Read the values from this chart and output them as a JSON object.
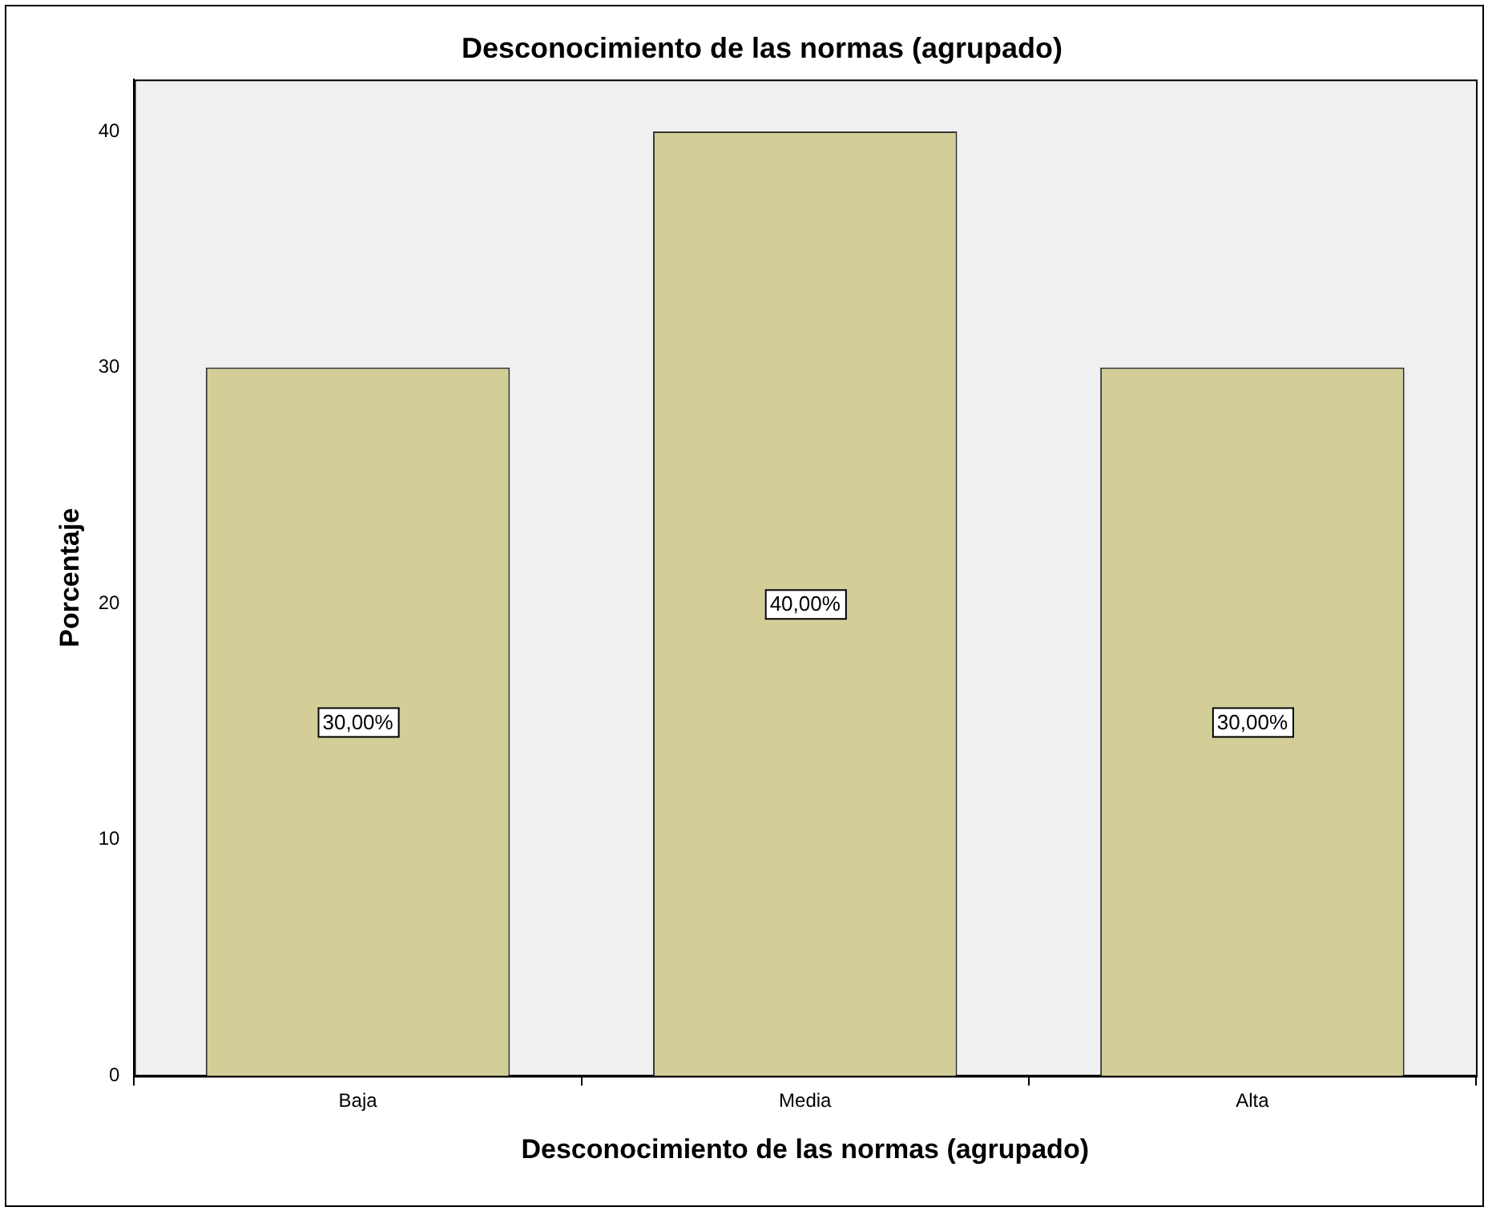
{
  "chart_data": {
    "type": "bar",
    "title": "Desconocimiento de las normas (agrupado)",
    "xlabel": "Desconocimiento de las normas (agrupado)",
    "ylabel": "Porcentaje",
    "categories": [
      "Baja",
      "Media",
      "Alta"
    ],
    "values": [
      30,
      40,
      30
    ],
    "color": "#d3ce98",
    "value_labels": [
      "30,00%",
      "40,00%",
      "30,00%"
    ],
    "ylim": [
      0,
      42.2
    ],
    "yticks": [
      0,
      10,
      20,
      30,
      40
    ],
    "grid": false,
    "legend": false
  }
}
